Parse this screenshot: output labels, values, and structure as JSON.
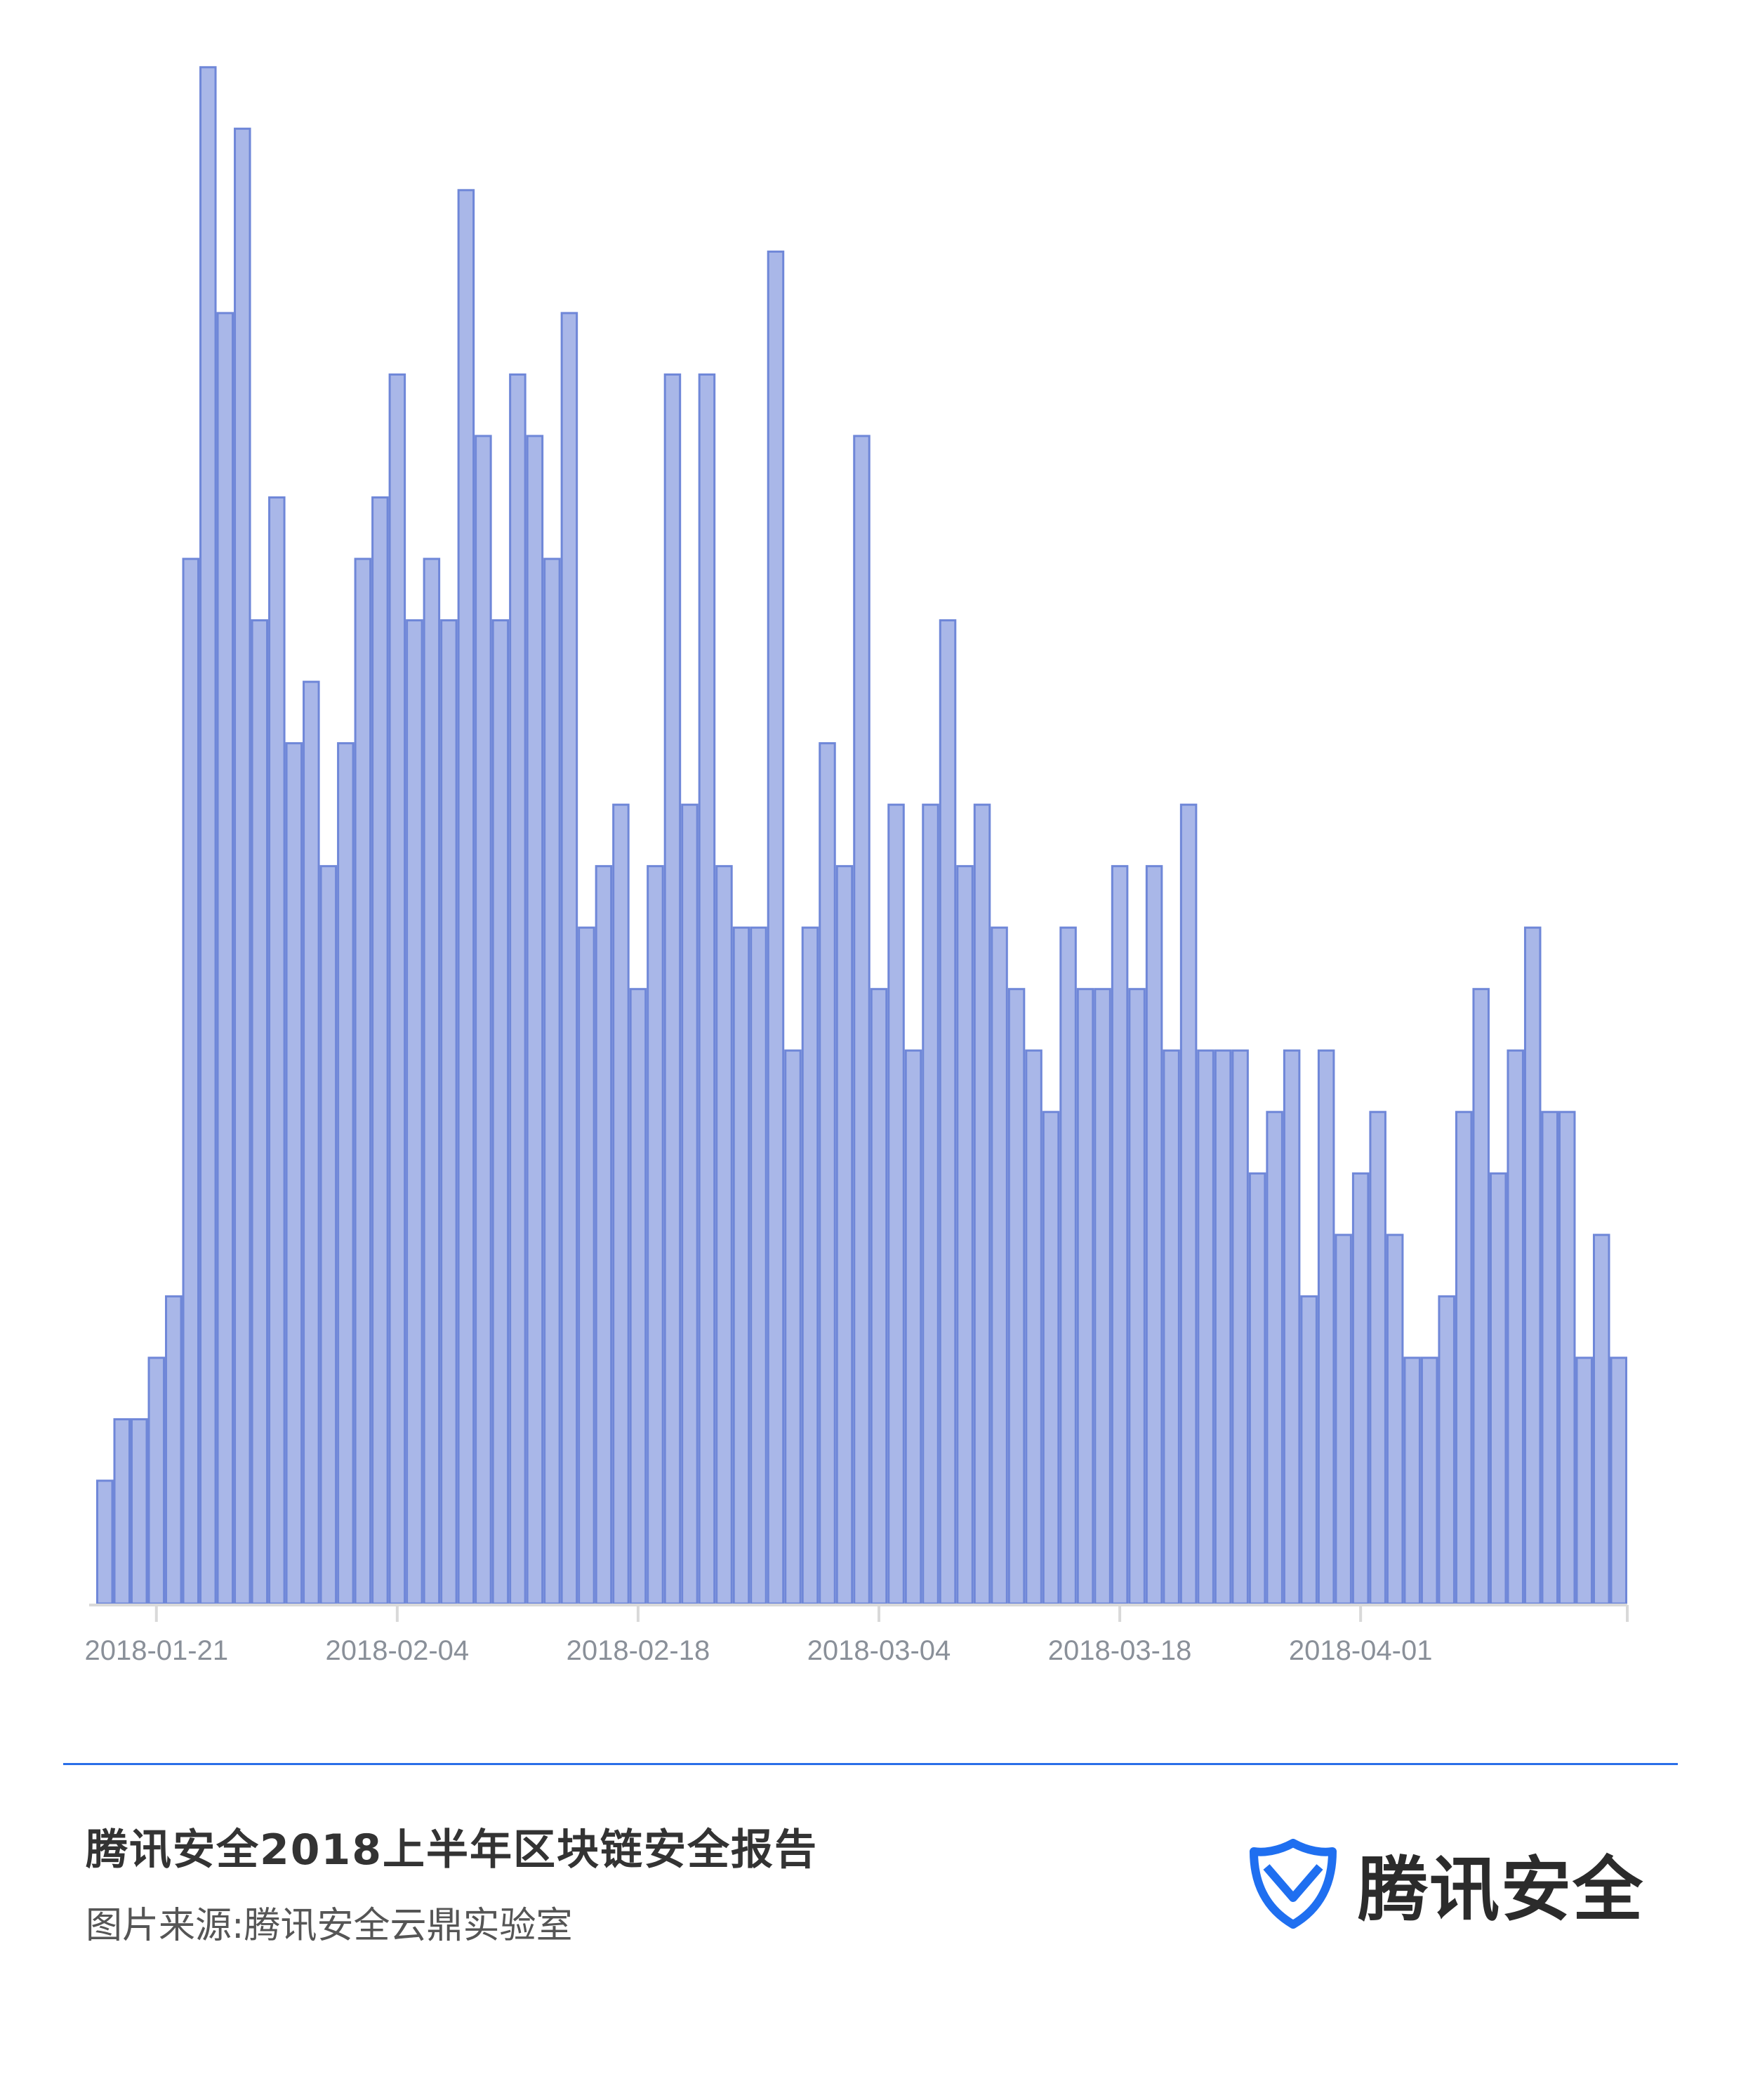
{
  "chart_data": {
    "type": "bar",
    "title": "",
    "xlabel": "",
    "ylabel": "",
    "start_date": "2018-01-18",
    "end_date": "2018-04-16",
    "tick_labels": [
      "2018-01-21",
      "2018-02-04",
      "2018-02-18",
      "2018-03-04",
      "2018-03-18",
      "2018-04-01"
    ],
    "values": [
      2,
      3,
      3,
      4,
      5,
      17,
      25,
      21,
      24,
      16,
      18,
      14,
      15,
      12,
      14,
      17,
      18,
      20,
      16,
      17,
      16,
      23,
      19,
      16,
      20,
      19,
      17,
      21,
      11,
      12,
      13,
      10,
      12,
      20,
      13,
      20,
      12,
      11,
      11,
      22,
      9,
      11,
      14,
      12,
      19,
      10,
      13,
      9,
      13,
      16,
      12,
      13,
      11,
      10,
      9,
      8,
      11,
      10,
      10,
      12,
      10,
      12,
      9,
      13,
      9,
      9,
      9,
      7,
      8,
      9,
      5,
      9,
      6,
      7,
      8,
      6,
      4,
      4,
      5,
      8,
      10,
      7,
      9,
      11,
      8,
      8,
      4,
      6,
      4
    ],
    "ylim": [
      0,
      25.5
    ],
    "y_axis_shown": false,
    "grid": false,
    "colors": {
      "bar_fill": "#a9b7e8",
      "bar_stroke": "#6f87d8",
      "axis": "#d9d9d9",
      "tick_label": "#8a9099"
    }
  },
  "footer": {
    "title": "腾讯安全2018上半年区块链安全报告",
    "source": "图片来源:腾讯安全云鼎实验室",
    "divider_color": "#2a6fe8"
  },
  "logo": {
    "text": "腾讯安全",
    "icon": "shield-check-icon",
    "color": "#1f6ff0"
  }
}
